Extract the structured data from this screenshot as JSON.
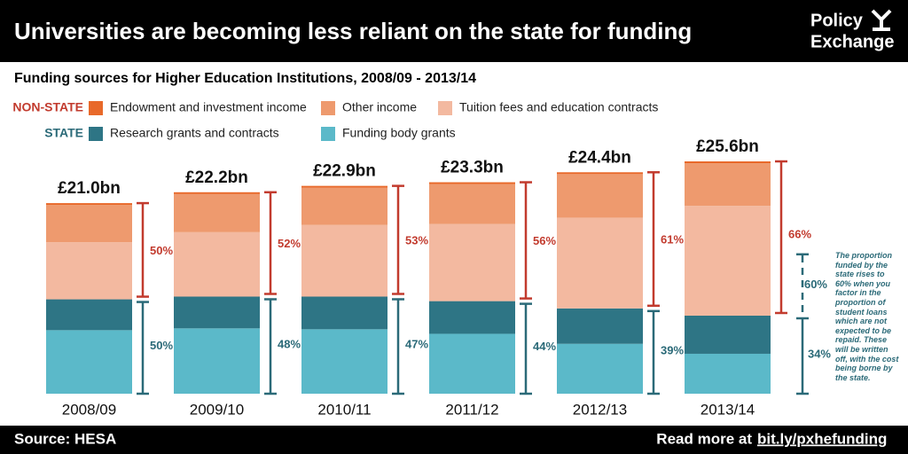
{
  "header": {
    "title": "Universities are becoming less reliant on the state for funding",
    "logo": {
      "line1": "Policy",
      "line2": "Exchange"
    }
  },
  "footer": {
    "source": "Source: HESA",
    "read_more": "Read more at",
    "link": "bit.ly/pxhefunding"
  },
  "chart_data": {
    "type": "stacked_bar",
    "title": "Funding sources for Higher Education Institutions, 2008/09 - 2013/14",
    "categories": [
      "2008/09",
      "2009/10",
      "2010/11",
      "2011/12",
      "2012/13",
      "2013/14"
    ],
    "series": [
      {
        "name": "Funding body grants",
        "color": "#5bb9c9",
        "values": [
          7.0,
          7.2,
          7.1,
          6.6,
          5.5,
          4.4
        ]
      },
      {
        "name": "Research grants and contracts",
        "color": "#2e7585",
        "values": [
          3.4,
          3.5,
          3.6,
          3.6,
          3.9,
          4.2
        ]
      },
      {
        "name": "Tuition fees and education contracts",
        "color": "#f3b9a0",
        "values": [
          6.3,
          7.1,
          7.9,
          8.5,
          10.0,
          12.1
        ]
      },
      {
        "name": "Other income",
        "color": "#ee9a6e",
        "values": [
          4.1,
          4.2,
          4.1,
          4.4,
          4.8,
          4.7
        ]
      },
      {
        "name": "Endowment and investment income",
        "color": "#e8692a",
        "values": [
          0.2,
          0.2,
          0.2,
          0.2,
          0.2,
          0.2
        ]
      }
    ],
    "legend_groups": [
      {
        "label": "NON-STATE",
        "color": "#c23b2e"
      },
      {
        "label": "STATE",
        "color": "#2b6a78"
      }
    ],
    "totals": {
      "values": [
        21.0,
        22.2,
        22.9,
        23.3,
        24.4,
        25.6
      ],
      "value_labels": [
        "£21.0bn",
        "£22.2bn",
        "£22.9bn",
        "£23.3bn",
        "£24.4bn",
        "£25.6bn"
      ]
    },
    "non_state_share": {
      "values": [
        50,
        52,
        53,
        56,
        61,
        66
      ],
      "value_labels": [
        "50%",
        "52%",
        "53%",
        "56%",
        "61%",
        "66%"
      ]
    },
    "state_share": {
      "values": [
        50,
        48,
        47,
        44,
        39,
        34
      ],
      "value_labels": [
        "50%",
        "48%",
        "47%",
        "44%",
        "39%",
        "34%"
      ]
    },
    "adjusted_state_share": {
      "category": "2013/14",
      "value": 60,
      "value_label": "60%",
      "note": "The proportion funded by the state rises to 60% when you factor in the proportion of student loans which are not expected to be repaid. These will be written off, with the cost being borne by the state."
    }
  }
}
